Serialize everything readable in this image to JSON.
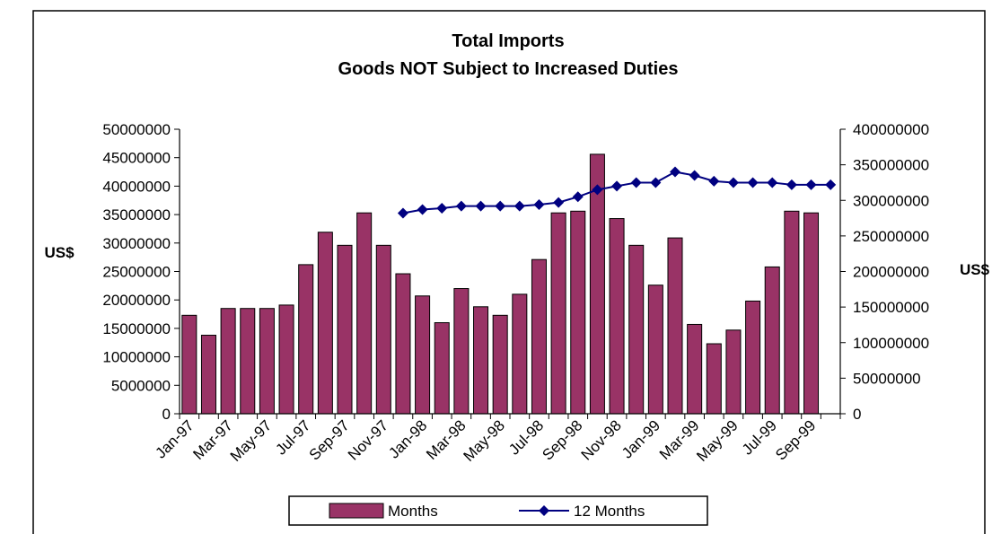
{
  "chart_data": {
    "type": "bar",
    "title": "Total Imports",
    "subtitle": "Goods NOT Subject to Increased Duties",
    "ylabel": "US$",
    "y2label": "US$",
    "ylim": [
      0,
      50000000
    ],
    "y2lim": [
      0,
      400000000
    ],
    "yticks": [
      "0",
      "5000000",
      "10000000",
      "15000000",
      "20000000",
      "25000000",
      "30000000",
      "35000000",
      "40000000",
      "45000000",
      "50000000"
    ],
    "y2ticks": [
      "0",
      "50000000",
      "100000000",
      "150000000",
      "200000000",
      "250000000",
      "300000000",
      "350000000",
      "400000000"
    ],
    "categories": [
      "Jan-97",
      "Feb-97",
      "Mar-97",
      "Apr-97",
      "May-97",
      "Jun-97",
      "Jul-97",
      "Aug-97",
      "Sep-97",
      "Oct-97",
      "Nov-97",
      "Dec-97",
      "Jan-98",
      "Feb-98",
      "Mar-98",
      "Apr-98",
      "May-98",
      "Jun-98",
      "Jul-98",
      "Aug-98",
      "Sep-98",
      "Oct-98",
      "Nov-98",
      "Dec-98",
      "Jan-99",
      "Feb-99",
      "Mar-99",
      "Apr-99",
      "May-99",
      "Jun-99",
      "Jul-99",
      "Aug-99",
      "Sep-99",
      "Oct-99"
    ],
    "xtick_labels": [
      "Jan-97",
      "",
      "Mar-97",
      "",
      "May-97",
      "",
      "Jul-97",
      "",
      "Sep-97",
      "",
      "Nov-97",
      "",
      "Jan-98",
      "",
      "Mar-98",
      "",
      "May-98",
      "",
      "Jul-98",
      "",
      "Sep-98",
      "",
      "Nov-98",
      "",
      "Jan-99",
      "",
      "Mar-99",
      "",
      "May-99",
      "",
      "Jul-99",
      "",
      "Sep-99",
      ""
    ],
    "series": [
      {
        "name": "Months",
        "type": "bar",
        "axis": "left",
        "color": "#993366",
        "values": [
          17300000,
          13800000,
          18500000,
          18500000,
          18500000,
          19100000,
          26200000,
          31900000,
          29600000,
          35300000,
          29600000,
          24600000,
          20700000,
          16000000,
          22000000,
          18800000,
          17300000,
          21000000,
          27100000,
          35300000,
          35600000,
          45600000,
          34300000,
          29600000,
          22600000,
          30900000,
          15700000,
          12300000,
          14700000,
          19800000,
          25800000,
          35600000,
          35300000,
          null
        ]
      },
      {
        "name": "12 Months",
        "type": "line",
        "axis": "right",
        "color": "#000080",
        "values": [
          null,
          null,
          null,
          null,
          null,
          null,
          null,
          null,
          null,
          null,
          null,
          282000000,
          287000000,
          289000000,
          292000000,
          292000000,
          292000000,
          292000000,
          294000000,
          297000000,
          305000000,
          315000000,
          320000000,
          325000000,
          325000000,
          340000000,
          335000000,
          327000000,
          325000000,
          325000000,
          325000000,
          322000000,
          322000000,
          322000000
        ]
      }
    ],
    "legend": {
      "position": "bottom"
    }
  }
}
